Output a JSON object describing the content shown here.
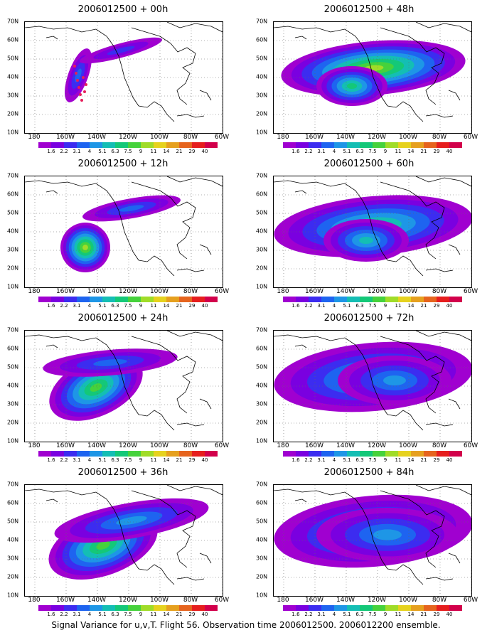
{
  "colorbar": {
    "colors": [
      "#a000d0",
      "#7a00e0",
      "#3c2cf0",
      "#1e64f0",
      "#1e96e6",
      "#14beb4",
      "#14c878",
      "#46d23c",
      "#a0dc28",
      "#e6d21e",
      "#e6a01e",
      "#e6641e",
      "#e61e1e",
      "#d2004b"
    ],
    "labels": [
      "1.6",
      "2.2",
      "3.1",
      "4",
      "5.1",
      "6.3",
      "7.5",
      "9",
      "11",
      "14",
      "21",
      "29",
      "40"
    ]
  },
  "lat_labels": [
    "70N",
    "60N",
    "50N",
    "40N",
    "30N",
    "20N",
    "10N"
  ],
  "lon_labels": [
    "180",
    "160W",
    "140W",
    "120W",
    "100W",
    "80W",
    "60W"
  ],
  "panels": [
    {
      "title": "2006012500 + 00h"
    },
    {
      "title": "2006012500 + 48h"
    },
    {
      "title": "2006012500 + 12h"
    },
    {
      "title": "2006012500 + 60h"
    },
    {
      "title": "2006012500 + 24h"
    },
    {
      "title": "2006012500 + 72h"
    },
    {
      "title": "2006012500 + 36h"
    },
    {
      "title": "2006012500 + 84h"
    }
  ],
  "caption": "Signal Variance for u,v,T. Flight 56. Observation time 2006012500. 2006012200 ensemble."
}
